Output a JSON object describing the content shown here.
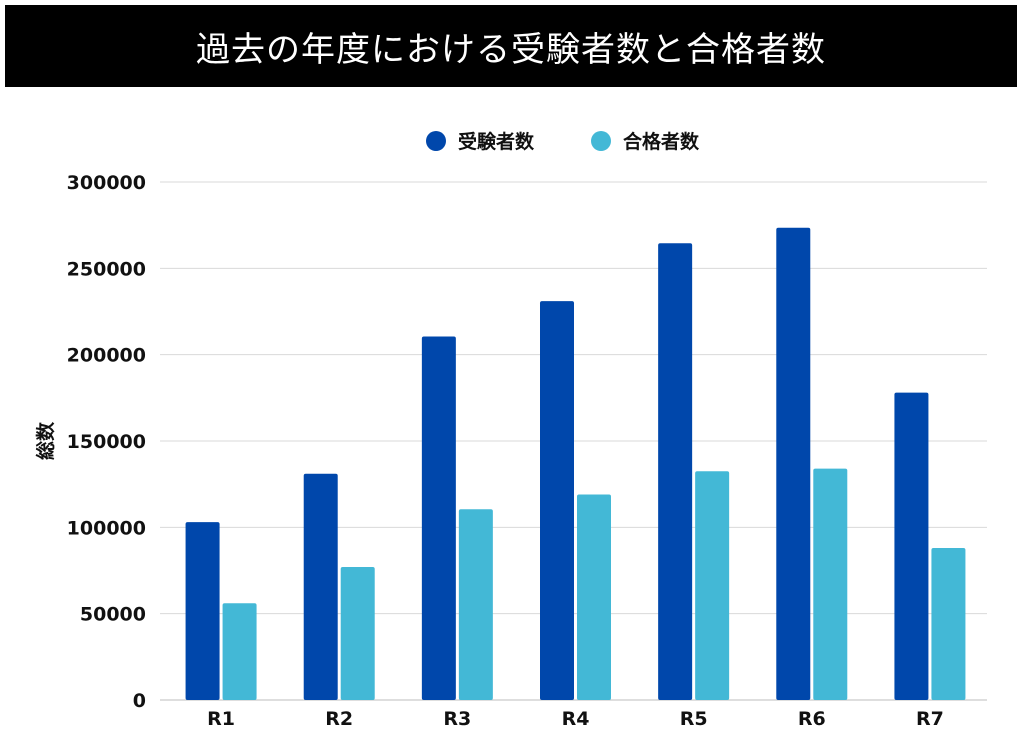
{
  "chart_data": {
    "type": "bar",
    "title": "過去の年度における受験者数と合格者数",
    "xlabel": "",
    "ylabel": "総数",
    "categories": [
      "R1",
      "R2",
      "R3",
      "R4",
      "R5",
      "R6",
      "R7"
    ],
    "series": [
      {
        "name": "受験者数",
        "color": "#0047AB",
        "values": [
          103000,
          131000,
          210500,
          231000,
          264500,
          273500,
          178000
        ]
      },
      {
        "name": "合格者数",
        "color": "#43B8D6",
        "values": [
          56000,
          77000,
          110500,
          119000,
          132500,
          134000,
          88000
        ]
      }
    ],
    "ylim": [
      0,
      300000
    ],
    "yticks": [
      0,
      50000,
      100000,
      150000,
      200000,
      250000,
      300000
    ],
    "grid": true,
    "legend_position": "top-center"
  }
}
